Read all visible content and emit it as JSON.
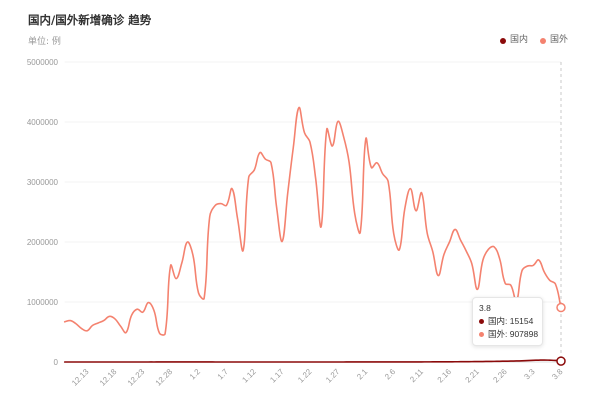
{
  "chart_data": {
    "type": "line",
    "smooth": true,
    "title": "国内/国外新增确诊 趋势",
    "subtitle": "单位: 例",
    "legend_position": "top-right",
    "grid": true,
    "ylim": [
      0,
      5000000
    ],
    "yticks": [
      0,
      1000000,
      2000000,
      3000000,
      4000000,
      5000000
    ],
    "x_tick_labels": [
      "12.13",
      "12.18",
      "12.23",
      "12.28",
      "1.2",
      "1.7",
      "1.12",
      "1.17",
      "1.22",
      "1.27",
      "2.1",
      "2.6",
      "2.11",
      "2.16",
      "2.21",
      "2.26",
      "3.3",
      "3.8"
    ],
    "categories": [
      "12.9",
      "12.10",
      "12.11",
      "12.12",
      "12.13",
      "12.14",
      "12.15",
      "12.16",
      "12.17",
      "12.18",
      "12.19",
      "12.20",
      "12.21",
      "12.22",
      "12.23",
      "12.24",
      "12.25",
      "12.26",
      "12.27",
      "12.28",
      "12.29",
      "12.30",
      "12.31",
      "1.1",
      "1.2",
      "1.3",
      "1.4",
      "1.5",
      "1.6",
      "1.7",
      "1.8",
      "1.9",
      "1.10",
      "1.11",
      "1.12",
      "1.13",
      "1.14",
      "1.15",
      "1.16",
      "1.17",
      "1.18",
      "1.19",
      "1.20",
      "1.21",
      "1.22",
      "1.23",
      "1.24",
      "1.25",
      "1.26",
      "1.27",
      "1.28",
      "1.29",
      "1.30",
      "1.31",
      "2.1",
      "2.2",
      "2.3",
      "2.4",
      "2.5",
      "2.6",
      "2.7",
      "2.8",
      "2.9",
      "2.10",
      "2.11",
      "2.12",
      "2.13",
      "2.14",
      "2.15",
      "2.16",
      "2.17",
      "2.18",
      "2.19",
      "2.20",
      "2.21",
      "2.22",
      "2.23",
      "2.24",
      "2.25",
      "2.26",
      "2.27",
      "2.28",
      "3.1",
      "3.2",
      "3.3",
      "3.4",
      "3.5",
      "3.6",
      "3.7",
      "3.8"
    ],
    "series": [
      {
        "name": "国内",
        "color": "#8B0A0A",
        "values": [
          130,
          120,
          110,
          115,
          125,
          140,
          135,
          150,
          160,
          155,
          170,
          185,
          200,
          210,
          230,
          250,
          240,
          260,
          280,
          290,
          300,
          310,
          320,
          330,
          300,
          280,
          260,
          250,
          240,
          230,
          220,
          210,
          200,
          190,
          180,
          170,
          165,
          160,
          155,
          150,
          145,
          140,
          150,
          160,
          170,
          180,
          190,
          200,
          210,
          220,
          240,
          260,
          280,
          300,
          350,
          400,
          450,
          500,
          600,
          700,
          800,
          1000,
          1200,
          1500,
          1800,
          2100,
          2400,
          2800,
          3200,
          3600,
          4000,
          4600,
          5300,
          6100,
          7000,
          8000,
          9200,
          10500,
          12000,
          13500,
          15000,
          17000,
          20000,
          24000,
          28000,
          31000,
          33000,
          30000,
          26000,
          15154
        ]
      },
      {
        "name": "国外",
        "color": "#F4826F",
        "values": [
          670000,
          690000,
          640000,
          560000,
          520000,
          610000,
          650000,
          690000,
          760000,
          720000,
          600000,
          490000,
          780000,
          880000,
          830000,
          990000,
          860000,
          480000,
          470000,
          1610000,
          1390000,
          1650000,
          2000000,
          1780000,
          1150000,
          1060000,
          2420000,
          2610000,
          2640000,
          2610000,
          2890000,
          2390000,
          1860000,
          3080000,
          3200000,
          3490000,
          3380000,
          3320000,
          2580000,
          2010000,
          2820000,
          3580000,
          4240000,
          3820000,
          3660000,
          3060000,
          2260000,
          3880000,
          3600000,
          4010000,
          3760000,
          3330000,
          2480000,
          2160000,
          3720000,
          3240000,
          3320000,
          3140000,
          3010000,
          2140000,
          1870000,
          2560000,
          2890000,
          2520000,
          2820000,
          2150000,
          1840000,
          1440000,
          1790000,
          2000000,
          2210000,
          2030000,
          1850000,
          1640000,
          1210000,
          1700000,
          1880000,
          1920000,
          1720000,
          1310000,
          1280000,
          1010000,
          1520000,
          1600000,
          1610000,
          1700000,
          1500000,
          1360000,
          1300000,
          907898
        ]
      }
    ]
  },
  "tooltip": {
    "title": "3.8",
    "rows": [
      {
        "text": "国内: 15154"
      },
      {
        "text": "国外: 907898"
      }
    ]
  }
}
